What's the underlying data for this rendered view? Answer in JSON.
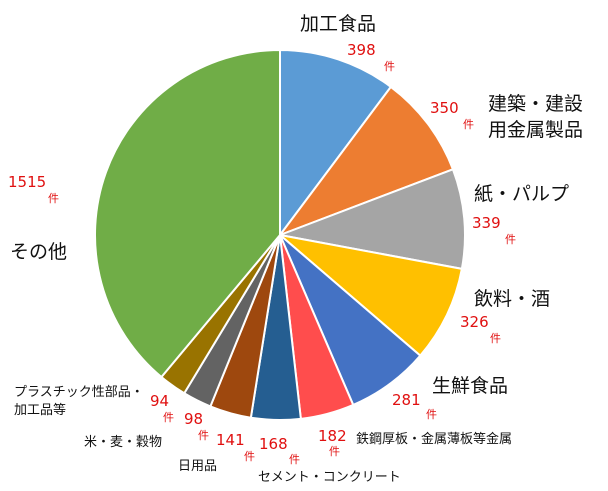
{
  "chart_data": {
    "type": "pie",
    "unit_label": "件",
    "colors_note": "slice fill colors",
    "slices": [
      {
        "label": "加工食品",
        "value": 398,
        "color": "#5b9bd5"
      },
      {
        "label": "建築・建設用金属製品",
        "value": 350,
        "color": "#ed7d31"
      },
      {
        "label": "紙・パルプ",
        "value": 339,
        "color": "#a5a5a5"
      },
      {
        "label": "飲料・酒",
        "value": 326,
        "color": "#ffc000"
      },
      {
        "label": "生鮮食品",
        "value": 281,
        "color": "#4472c4"
      },
      {
        "label": "鉄鋼厚板・金属薄板等金属",
        "value": 182,
        "color": "#ff4d4d"
      },
      {
        "label": "セメント・コンクリート",
        "value": 168,
        "color": "#255e91"
      },
      {
        "label": "日用品",
        "value": 141,
        "color": "#9e480e"
      },
      {
        "label": "米・麦・穀物",
        "value": 98,
        "color": "#636363"
      },
      {
        "label": "プラスチック性部品・加工品等",
        "value": 94,
        "color": "#997300"
      },
      {
        "label": "その他",
        "value": 1515,
        "color": "#70ad47"
      }
    ]
  }
}
